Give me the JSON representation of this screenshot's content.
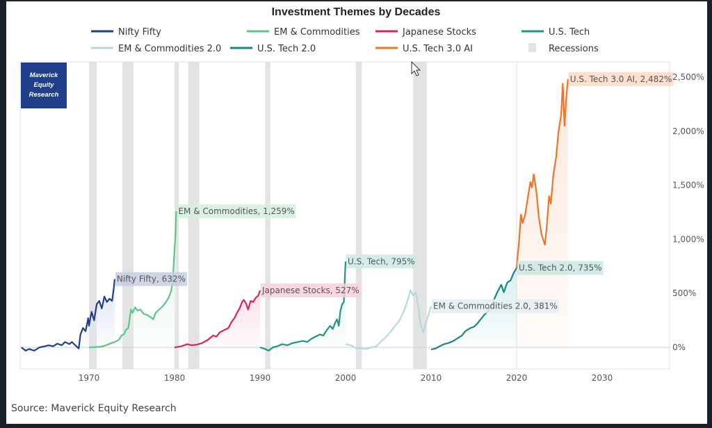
{
  "chart_data": {
    "type": "line",
    "title": "Investment Themes by Decades",
    "xlabel": "",
    "ylabel": "",
    "xlim": [
      1962,
      2038
    ],
    "ylim": [
      -100,
      2550
    ],
    "x_ticks": [
      1970,
      1980,
      1990,
      2000,
      2010,
      2020,
      2030
    ],
    "y_ticks": [
      {
        "value": 0,
        "label": "0%"
      },
      {
        "value": 500,
        "label": "500%"
      },
      {
        "value": 1000,
        "label": "1,000%"
      },
      {
        "value": 1500,
        "label": "1,500%"
      },
      {
        "value": 2000,
        "label": "2,000%"
      },
      {
        "value": 2500,
        "label": "2,500%"
      }
    ],
    "y_axis_side": "right",
    "legend_position": "top",
    "legend": [
      {
        "name": "Nifty Fifty",
        "color": "#1f3f8a",
        "kind": "line"
      },
      {
        "name": "EM & Commodities",
        "color": "#5ec58a",
        "kind": "line"
      },
      {
        "name": "Japanese Stocks",
        "color": "#d9245e",
        "kind": "line"
      },
      {
        "name": "U.S. Tech",
        "color": "#1f9488",
        "kind": "line"
      },
      {
        "name": "EM & Commodities 2.0",
        "color": "#b5d8dc",
        "kind": "line"
      },
      {
        "name": "U.S. Tech 2.0",
        "color": "#17897f",
        "kind": "line"
      },
      {
        "name": "U.S. Tech 3.0 AI",
        "color": "#ee7527",
        "kind": "line"
      },
      {
        "name": "Recessions",
        "color": "#e3e3e3",
        "kind": "box"
      }
    ],
    "recessions": [
      [
        1970.0,
        1970.9
      ],
      [
        1973.9,
        1975.2
      ],
      [
        1980.0,
        1980.5
      ],
      [
        1981.6,
        1982.9
      ],
      [
        1990.6,
        1991.2
      ],
      [
        2001.2,
        2001.9
      ],
      [
        2007.9,
        2009.5
      ]
    ],
    "series": [
      {
        "name": "Nifty Fifty",
        "color": "#1f3f8a",
        "fill": "#dfe5f2",
        "end_label": "Nifty Fifty, 632%",
        "label_bg": "#c5cfe0",
        "points": [
          [
            1962.1,
            0
          ],
          [
            1962.6,
            -30
          ],
          [
            1963.0,
            -15
          ],
          [
            1963.6,
            -30
          ],
          [
            1964.2,
            0
          ],
          [
            1964.8,
            10
          ],
          [
            1965.3,
            20
          ],
          [
            1965.8,
            10
          ],
          [
            1966.3,
            35
          ],
          [
            1966.8,
            20
          ],
          [
            1967.2,
            50
          ],
          [
            1967.7,
            30
          ],
          [
            1968.0,
            50
          ],
          [
            1968.4,
            20
          ],
          [
            1968.8,
            -10
          ],
          [
            1969.0,
            120
          ],
          [
            1969.3,
            180
          ],
          [
            1969.6,
            150
          ],
          [
            1969.9,
            270
          ],
          [
            1970.0,
            200
          ],
          [
            1970.3,
            330
          ],
          [
            1970.6,
            250
          ],
          [
            1970.9,
            400
          ],
          [
            1971.2,
            430
          ],
          [
            1971.5,
            360
          ],
          [
            1971.8,
            470
          ],
          [
            1972.1,
            420
          ],
          [
            1972.4,
            450
          ],
          [
            1972.7,
            430
          ],
          [
            1972.9,
            550
          ],
          [
            1973.0,
            632
          ]
        ]
      },
      {
        "name": "EM & Commodities",
        "color": "#5ec58a",
        "fill": "#e4f6ea",
        "end_label": "EM & Commodities, 1,259%",
        "label_bg": "#d4f0dd",
        "points": [
          [
            1970.0,
            0
          ],
          [
            1970.8,
            3
          ],
          [
            1971.5,
            8
          ],
          [
            1972.0,
            20
          ],
          [
            1972.6,
            40
          ],
          [
            1973.0,
            50
          ],
          [
            1973.5,
            70
          ],
          [
            1973.8,
            110
          ],
          [
            1974.1,
            120
          ],
          [
            1974.3,
            160
          ],
          [
            1974.6,
            180
          ],
          [
            1974.9,
            350
          ],
          [
            1975.1,
            320
          ],
          [
            1975.4,
            370
          ],
          [
            1975.7,
            340
          ],
          [
            1976.0,
            350
          ],
          [
            1976.4,
            310
          ],
          [
            1976.8,
            300
          ],
          [
            1977.2,
            280
          ],
          [
            1977.5,
            260
          ],
          [
            1977.8,
            320
          ],
          [
            1978.2,
            350
          ],
          [
            1978.6,
            380
          ],
          [
            1979.0,
            420
          ],
          [
            1979.3,
            460
          ],
          [
            1979.6,
            520
          ],
          [
            1979.8,
            620
          ],
          [
            1980.0,
            900
          ],
          [
            1980.1,
            1020
          ],
          [
            1980.2,
            1259
          ]
        ]
      },
      {
        "name": "Japanese Stocks",
        "color": "#d9245e",
        "fill": "#fbe0e8",
        "end_label": "Japanese Stocks, 527%",
        "label_bg": "#f8cfdb",
        "points": [
          [
            1980.0,
            0
          ],
          [
            1980.8,
            10
          ],
          [
            1981.5,
            30
          ],
          [
            1982.0,
            20
          ],
          [
            1982.6,
            25
          ],
          [
            1983.2,
            40
          ],
          [
            1983.9,
            70
          ],
          [
            1984.5,
            110
          ],
          [
            1984.9,
            100
          ],
          [
            1985.3,
            140
          ],
          [
            1985.8,
            160
          ],
          [
            1986.3,
            180
          ],
          [
            1986.7,
            240
          ],
          [
            1987.0,
            270
          ],
          [
            1987.3,
            320
          ],
          [
            1987.6,
            360
          ],
          [
            1987.9,
            420
          ],
          [
            1988.1,
            440
          ],
          [
            1988.4,
            400
          ],
          [
            1988.6,
            350
          ],
          [
            1988.9,
            430
          ],
          [
            1989.2,
            420
          ],
          [
            1989.5,
            460
          ],
          [
            1989.8,
            480
          ],
          [
            1990.0,
            527
          ]
        ]
      },
      {
        "name": "U.S. Tech",
        "color": "#1f9488",
        "fill": "#e0f2ef",
        "end_label": "U.S. Tech, 795%",
        "label_bg": "#cdeae6",
        "points": [
          [
            1990.0,
            0
          ],
          [
            1990.6,
            -15
          ],
          [
            1991.0,
            -30
          ],
          [
            1991.5,
            0
          ],
          [
            1992.0,
            10
          ],
          [
            1992.6,
            30
          ],
          [
            1993.2,
            20
          ],
          [
            1993.8,
            40
          ],
          [
            1994.4,
            50
          ],
          [
            1995.0,
            60
          ],
          [
            1995.5,
            50
          ],
          [
            1996.0,
            80
          ],
          [
            1996.5,
            100
          ],
          [
            1997.0,
            120
          ],
          [
            1997.4,
            110
          ],
          [
            1997.8,
            160
          ],
          [
            1998.2,
            200
          ],
          [
            1998.5,
            170
          ],
          [
            1998.8,
            230
          ],
          [
            1999.0,
            260
          ],
          [
            1999.2,
            200
          ],
          [
            1999.4,
            340
          ],
          [
            1999.6,
            400
          ],
          [
            1999.8,
            420
          ],
          [
            2000.0,
            795
          ]
        ]
      },
      {
        "name": "EM & Commodities 2.0",
        "color": "#b5d8dc",
        "fill": "none",
        "end_label": "EM & Commodities 2.0, 381%",
        "label_bg": "#e4eef0",
        "points": [
          [
            2000.0,
            30
          ],
          [
            2000.6,
            20
          ],
          [
            2001.2,
            -5
          ],
          [
            2001.8,
            -10
          ],
          [
            2002.4,
            -15
          ],
          [
            2003.0,
            0
          ],
          [
            2003.6,
            10
          ],
          [
            2004.2,
            60
          ],
          [
            2004.8,
            100
          ],
          [
            2005.3,
            150
          ],
          [
            2005.8,
            200
          ],
          [
            2006.3,
            250
          ],
          [
            2006.8,
            330
          ],
          [
            2007.2,
            420
          ],
          [
            2007.6,
            530
          ],
          [
            2007.9,
            480
          ],
          [
            2008.2,
            510
          ],
          [
            2008.5,
            380
          ],
          [
            2008.8,
            200
          ],
          [
            2009.1,
            140
          ],
          [
            2009.4,
            230
          ],
          [
            2009.7,
            300
          ],
          [
            2010.0,
            381
          ]
        ]
      },
      {
        "name": "U.S. Tech 2.0",
        "color": "#17897f",
        "fill": "#d8efee",
        "end_label": "U.S. Tech 2.0, 735%",
        "label_bg": "#c9e7e3",
        "points": [
          [
            2010.0,
            -20
          ],
          [
            2010.5,
            -10
          ],
          [
            2011.0,
            10
          ],
          [
            2011.5,
            30
          ],
          [
            2012.0,
            40
          ],
          [
            2012.6,
            60
          ],
          [
            2013.0,
            80
          ],
          [
            2013.6,
            110
          ],
          [
            2014.0,
            150
          ],
          [
            2014.6,
            180
          ],
          [
            2015.0,
            190
          ],
          [
            2015.4,
            220
          ],
          [
            2015.8,
            260
          ],
          [
            2016.2,
            300
          ],
          [
            2016.6,
            330
          ],
          [
            2017.0,
            380
          ],
          [
            2017.4,
            450
          ],
          [
            2017.8,
            520
          ],
          [
            2018.2,
            580
          ],
          [
            2018.5,
            510
          ],
          [
            2018.9,
            600
          ],
          [
            2019.3,
            620
          ],
          [
            2019.6,
            680
          ],
          [
            2020.0,
            735
          ]
        ]
      },
      {
        "name": "U.S. Tech 3.0 AI",
        "color": "#ee7527",
        "fill": "#fde8da",
        "end_label": "U.S. Tech 3.0 AI, 2,482%",
        "label_bg": "#fbd9c3",
        "points": [
          [
            2020.0,
            735
          ],
          [
            2020.3,
            1000
          ],
          [
            2020.5,
            1230
          ],
          [
            2020.7,
            1150
          ],
          [
            2021.0,
            1230
          ],
          [
            2021.3,
            1380
          ],
          [
            2021.6,
            1530
          ],
          [
            2021.8,
            1480
          ],
          [
            2022.0,
            1600
          ],
          [
            2022.3,
            1450
          ],
          [
            2022.6,
            1200
          ],
          [
            2022.9,
            1050
          ],
          [
            2023.1,
            1000
          ],
          [
            2023.3,
            950
          ],
          [
            2023.5,
            1100
          ],
          [
            2023.8,
            1400
          ],
          [
            2024.0,
            1330
          ],
          [
            2024.3,
            1600
          ],
          [
            2024.6,
            1750
          ],
          [
            2024.9,
            2000
          ],
          [
            2025.2,
            2150
          ],
          [
            2025.4,
            2440
          ],
          [
            2025.6,
            2050
          ],
          [
            2025.8,
            2300
          ],
          [
            2026.0,
            2482
          ]
        ]
      }
    ],
    "watermark": "Maverick Equity Research",
    "source": "Source: Maverick Equity Research"
  },
  "logo": {
    "lines": [
      "Maverick",
      "Equity",
      "Research"
    ],
    "bg_color": "#1f3f8a"
  }
}
